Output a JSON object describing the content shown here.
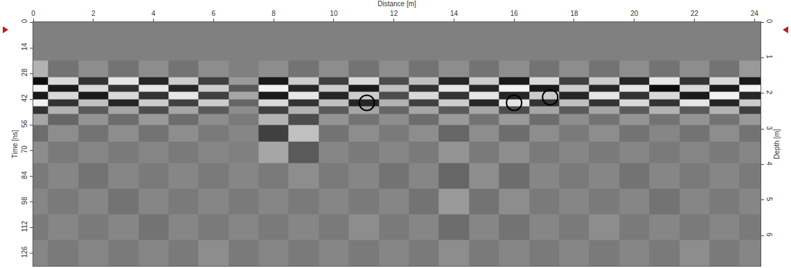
{
  "chart_data": {
    "type": "heatmap",
    "x_label": "Distance [m]",
    "y_label": "Time [ns]",
    "y2_label": "Depth [m]",
    "grid": false,
    "xlim": [
      0,
      24.2
    ],
    "xticks": [
      0,
      2,
      4,
      6,
      8,
      10,
      12,
      14,
      16,
      18,
      20,
      22,
      24
    ],
    "ylim": [
      133,
      0
    ],
    "yticks": [
      0,
      14,
      28,
      42,
      56,
      70,
      84,
      98,
      112,
      126
    ],
    "y2lim": [
      6.85,
      0
    ],
    "y2ticks": [
      0,
      1,
      2,
      3,
      4,
      5,
      6
    ],
    "zlim": [
      -1,
      1
    ],
    "x": [
      0,
      1,
      2,
      3,
      4,
      5,
      6,
      7,
      8,
      9,
      10,
      11,
      12,
      13,
      14,
      15,
      16,
      17,
      18,
      19,
      20,
      21,
      22,
      23,
      24
    ],
    "y": [
      0,
      14,
      28,
      32,
      36,
      40,
      44,
      48,
      52,
      60,
      70,
      84,
      98,
      112,
      126
    ],
    "cells": [
      [
        0,
        0,
        0,
        0,
        0,
        0,
        0,
        0,
        0,
        0,
        0,
        0,
        0,
        0,
        0,
        0,
        0,
        0,
        0,
        0,
        0,
        0,
        0,
        0,
        0
      ],
      [
        0,
        0,
        0,
        0,
        0,
        0,
        0,
        0,
        0,
        0,
        0,
        0,
        0,
        0,
        0,
        0,
        0,
        0,
        0,
        0,
        0,
        0,
        0,
        0,
        0
      ],
      [
        0.4,
        -0.1,
        0.1,
        -0.1,
        0.1,
        -0.1,
        0.1,
        0,
        0.1,
        -0.1,
        0.1,
        -0.1,
        0.1,
        -0.1,
        0.1,
        -0.1,
        0.1,
        -0.1,
        0.1,
        -0.1,
        0.1,
        -0.1,
        0.1,
        -0.1,
        0.2
      ],
      [
        -0.9,
        0.7,
        -0.6,
        0.8,
        -0.7,
        0.6,
        -0.5,
        0.2,
        -0.8,
        0.6,
        -0.5,
        0.7,
        -0.4,
        0.5,
        -0.7,
        0.6,
        -0.8,
        0.7,
        -0.5,
        0.6,
        -0.7,
        0.8,
        -0.6,
        0.7,
        -0.8
      ],
      [
        0.9,
        -0.8,
        0.7,
        -0.6,
        0.8,
        -0.7,
        0.6,
        -0.3,
        0.9,
        -0.7,
        0.6,
        -0.8,
        0.5,
        -0.6,
        0.8,
        -0.7,
        0.9,
        -0.8,
        0.6,
        -0.7,
        0.8,
        -0.9,
        0.7,
        -0.8,
        0.9
      ],
      [
        -0.8,
        0.7,
        -0.8,
        0.7,
        -0.6,
        0.8,
        -0.5,
        0.3,
        -0.8,
        0.8,
        -0.7,
        0.6,
        -0.4,
        0.7,
        -0.6,
        0.8,
        -0.7,
        0.6,
        -0.7,
        0.8,
        -0.6,
        0.7,
        -0.8,
        0.9,
        -0.7
      ],
      [
        0.9,
        -0.6,
        0.5,
        -0.7,
        0.6,
        -0.5,
        0.6,
        -0.2,
        0.7,
        -0.6,
        0.5,
        -0.7,
        0.4,
        -0.5,
        0.6,
        -0.7,
        0.8,
        -0.6,
        0.5,
        -0.6,
        0.7,
        -0.6,
        0.8,
        -0.7,
        0.6
      ],
      [
        -0.6,
        0.4,
        -0.3,
        0.3,
        -0.4,
        0.3,
        -0.3,
        0.1,
        -0.5,
        0.4,
        -0.3,
        0.3,
        -0.2,
        0.3,
        -0.3,
        0.3,
        -0.4,
        0.3,
        -0.3,
        0.3,
        -0.3,
        0.4,
        -0.3,
        0.4,
        -0.5
      ],
      [
        0.3,
        -0.2,
        0.15,
        -0.15,
        0.2,
        -0.15,
        0.1,
        -0.05,
        0.4,
        -0.4,
        0.15,
        -0.1,
        0.1,
        -0.15,
        0.2,
        -0.1,
        0.2,
        -0.15,
        0.1,
        -0.1,
        0.15,
        -0.1,
        0.15,
        -0.1,
        0.2
      ],
      [
        -0.15,
        0.1,
        -0.1,
        0.1,
        -0.1,
        0.1,
        -0.05,
        0.05,
        -0.5,
        0.5,
        -0.1,
        0.1,
        -0.05,
        0.1,
        -0.2,
        0.1,
        -0.15,
        0.1,
        -0.05,
        0.1,
        -0.1,
        0.05,
        -0.1,
        0.1,
        -0.1
      ],
      [
        0.1,
        -0.05,
        0.05,
        -0.05,
        0.05,
        -0.05,
        0.05,
        0,
        0.3,
        -0.3,
        0.05,
        -0.05,
        0.05,
        -0.05,
        0.15,
        -0.05,
        0.1,
        -0.05,
        0.05,
        -0.05,
        0.05,
        -0.05,
        0.05,
        -0.05,
        0.05
      ],
      [
        -0.05,
        0.05,
        -0.1,
        0.05,
        -0.05,
        0.05,
        -0.05,
        0.05,
        -0.05,
        0.1,
        -0.05,
        0.05,
        -0.1,
        0.05,
        -0.2,
        0.1,
        -0.15,
        0.05,
        -0.05,
        0.05,
        -0.1,
        0.05,
        -0.05,
        0.05,
        -0.05
      ],
      [
        0.05,
        -0.05,
        0.05,
        -0.1,
        0.05,
        -0.05,
        0.05,
        -0.05,
        0.05,
        -0.05,
        0.05,
        -0.05,
        0.05,
        -0.1,
        0.2,
        -0.1,
        0.1,
        -0.05,
        0.05,
        -0.05,
        0.05,
        -0.1,
        0.05,
        -0.05,
        0.05
      ],
      [
        -0.05,
        0.05,
        -0.05,
        0.05,
        -0.1,
        0.05,
        -0.05,
        0.05,
        -0.05,
        0.05,
        -0.05,
        0.1,
        -0.05,
        0.05,
        -0.15,
        0.05,
        -0.1,
        0.05,
        -0.05,
        0.1,
        -0.05,
        0.05,
        -0.05,
        0.05,
        -0.05
      ],
      [
        0.05,
        -0.05,
        0.05,
        -0.05,
        0.05,
        -0.05,
        0.1,
        -0.05,
        0.05,
        -0.05,
        0.05,
        -0.05,
        0.05,
        -0.05,
        0.1,
        -0.05,
        0.05,
        -0.05,
        0.05,
        -0.05,
        0.05,
        -0.05,
        0.1,
        -0.05,
        0.05
      ]
    ],
    "markers": {
      "x": [
        11.1,
        16.0,
        17.2
      ],
      "y": [
        44,
        44,
        41
      ],
      "marker": "circle-open",
      "color": "#000000"
    }
  }
}
